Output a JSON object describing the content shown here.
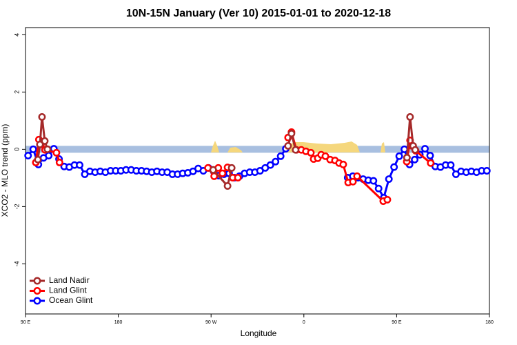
{
  "chart_data": {
    "type": "line",
    "title": "10N-15N January (Ver 10)   2015-01-01 to 2020-12-18",
    "x_label": "Longitude",
    "y_label": "XCO2 - MLO trend (ppm)",
    "xlim": [
      90,
      540
    ],
    "ylim": [
      -5.75,
      4.25
    ],
    "xticks": [
      {
        "value": 90,
        "label": "90 E"
      },
      180,
      {
        "value": 270,
        "label": "90 W"
      },
      {
        "value": 360,
        "label": "0"
      },
      {
        "value": 450,
        "label": "90 E"
      },
      {
        "value": 540,
        "label": "180"
      }
    ],
    "yticks": [
      -4,
      -2,
      0,
      2,
      4
    ],
    "legend": "bottomleft",
    "series": [
      {
        "name": "Land Nadir",
        "color": "#a52a2a",
        "x": [
          102,
          104,
          106,
          108.7,
          111.3,
          200,
          272,
          286,
          290,
          320,
          344.7,
          348,
          352,
          420,
          460,
          463,
          466,
          468
        ],
        "values": [
          -0.36,
          0.17,
          1.13,
          0.29,
          0,
          null,
          -0.72,
          -1.28,
          -0.65,
          null,
          0.12,
          0.55,
          -0.02,
          null,
          -0.29,
          1.13,
          0.12,
          -0.02
        ]
      },
      {
        "name": "Land Glint",
        "color": "#ff0000",
        "x": [
          100,
          103,
          105,
          109,
          120,
          123,
          200,
          267,
          273,
          277,
          281,
          286,
          291,
          296,
          320,
          344.7,
          348,
          352.8,
          357.5,
          362,
          366.8,
          369.5,
          373.5,
          376.8,
          380.9,
          385.5,
          390.2,
          394.2,
          398.2,
          403,
          407.6,
          411.6,
          437,
          441,
          450,
          459.8,
          463,
          465,
          468.4,
          483
        ],
        "values": [
          -0.46,
          0.34,
          0.17,
          -0.02,
          -0.12,
          -0.46,
          null,
          -0.65,
          -0.94,
          -0.65,
          -0.84,
          -0.63,
          -0.99,
          -0.99,
          null,
          0.41,
          0.6,
          -0.02,
          -0.02,
          -0.07,
          -0.12,
          -0.34,
          -0.31,
          -0.19,
          -0.24,
          -0.36,
          -0.39,
          -0.48,
          -0.53,
          -1.16,
          -1.13,
          -0.94,
          -1.81,
          -1.76,
          null,
          -0.43,
          0.31,
          0.12,
          -0.05,
          -0.48
        ]
      },
      {
        "name": "Ocean Glint",
        "color": "#0000ff",
        "x": [
          92.5,
          97.5,
          102.5,
          107.5,
          112.5,
          117.5,
          122.5,
          127.5,
          132.5,
          137.5,
          142.5,
          147.5,
          152.5,
          157.5,
          162.5,
          167.5,
          172.5,
          177.5,
          182.5,
          187.5,
          192.5,
          197.5,
          202.5,
          207.5,
          212.5,
          217.5,
          222.5,
          227.5,
          232.5,
          237.5,
          242.5,
          247.5,
          252.5,
          257.5,
          262.5,
          267.5,
          272.5,
          277.5,
          282.5,
          287.5,
          292.5,
          297.5,
          302.5,
          307.5,
          312.5,
          317.5,
          322.5,
          327.5,
          332.5,
          337.5,
          342.5,
          347.5,
          352.5,
          357.5,
          362.5,
          367.5,
          372.5,
          377.5,
          382.5,
          387.5,
          392.5,
          397.5,
          402.5,
          407.5,
          412.5,
          417.5,
          422.5,
          427.5,
          432.5,
          437.5,
          442.5,
          447.5,
          452.5,
          457.5,
          462.5,
          467.5,
          472.5,
          477.5,
          482.5,
          487.5,
          492.5,
          497.5,
          502.5,
          507.5,
          512.5,
          517.5,
          522.5,
          527.5,
          532.5,
          537.5
        ],
        "values": [
          -0.22,
          0,
          -0.53,
          -0.3,
          -0.22,
          0.02,
          -0.34,
          -0.6,
          -0.62,
          -0.55,
          -0.55,
          -0.87,
          -0.77,
          -0.8,
          -0.77,
          -0.8,
          -0.75,
          -0.75,
          -0.75,
          -0.72,
          -0.72,
          -0.75,
          -0.75,
          -0.77,
          -0.8,
          -0.77,
          -0.8,
          -0.8,
          -0.87,
          -0.87,
          -0.84,
          -0.82,
          -0.77,
          -0.67,
          -0.75,
          -0.65,
          -0.77,
          -0.92,
          -0.87,
          -0.84,
          -0.99,
          -0.94,
          -0.84,
          -0.8,
          -0.8,
          -0.75,
          -0.65,
          -0.55,
          -0.43,
          -0.24,
          0.02,
          null,
          null,
          null,
          null,
          null,
          null,
          null,
          null,
          null,
          null,
          null,
          -0.99,
          -0.94,
          -0.99,
          -1.04,
          -1.08,
          -1.1,
          -1.37,
          -1.69,
          -1.04,
          -0.62,
          -0.24,
          0,
          -0.53,
          -0.36,
          -0.19,
          0.02,
          -0.22,
          -0.6,
          -0.62,
          -0.55,
          -0.55,
          -0.87,
          -0.77,
          -0.8,
          -0.77,
          -0.8,
          -0.75,
          -0.75
        ]
      }
    ]
  }
}
